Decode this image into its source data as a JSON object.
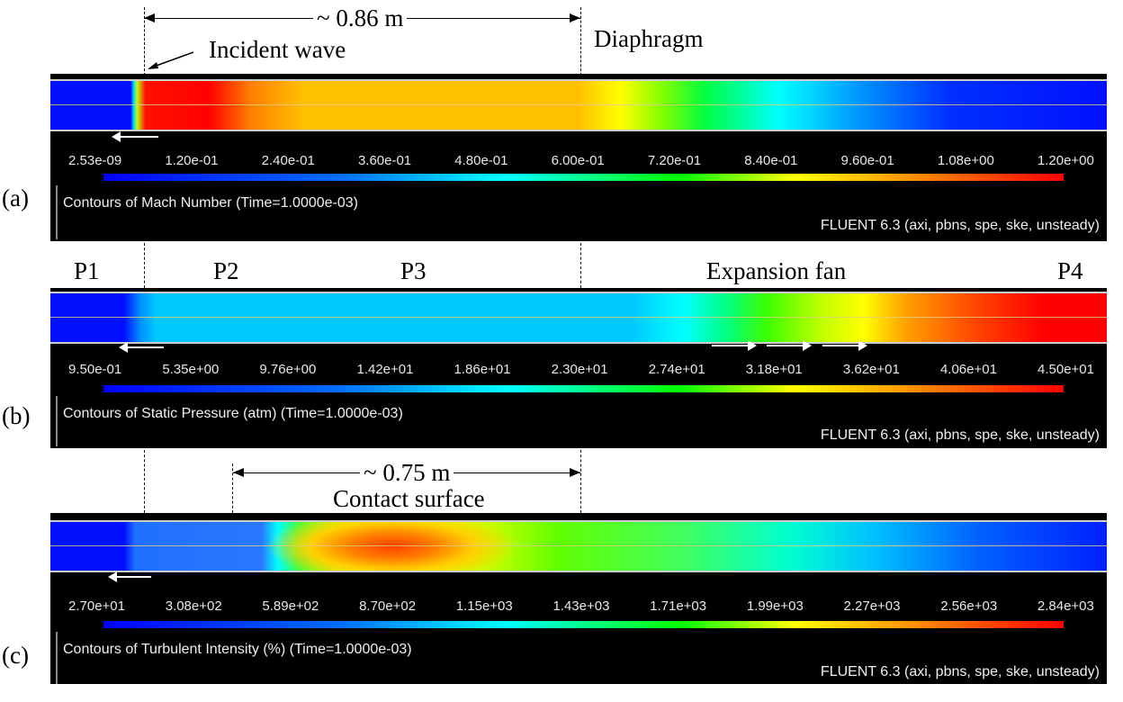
{
  "annotations": {
    "dim_top": "~ 0.86 m",
    "incident_wave": "Incident wave",
    "diaphragm": "Diaphragm",
    "p1": "P1",
    "p2": "P2",
    "p3": "P3",
    "expansion_fan": "Expansion fan",
    "p4": "P4",
    "dim_bottom": "~ 0.75 m",
    "contact_surface": "Contact surface"
  },
  "panels": [
    {
      "label": "(a)",
      "title": "Contours of Mach Number  (Time=1.0000e-03)",
      "footer": "FLUENT 6.3 (axi, pbns, spe, ske, unsteady)",
      "ticks": [
        "2.53e-09",
        "1.20e-01",
        "2.40e-01",
        "3.60e-01",
        "4.80e-01",
        "6.00e-01",
        "7.20e-01",
        "8.40e-01",
        "9.60e-01",
        "1.08e+00",
        "1.20e+00"
      ]
    },
    {
      "label": "(b)",
      "title": "Contours of Static Pressure (atm)  (Time=1.0000e-03)",
      "footer": "FLUENT 6.3 (axi, pbns, spe, ske, unsteady)",
      "ticks": [
        "9.50e-01",
        "5.35e+00",
        "9.76e+00",
        "1.42e+01",
        "1.86e+01",
        "2.30e+01",
        "2.74e+01",
        "3.18e+01",
        "3.62e+01",
        "4.06e+01",
        "4.50e+01"
      ]
    },
    {
      "label": "(c)",
      "title": "Contours of Turbulent Intensity (%)  (Time=1.0000e-03)",
      "footer": "FLUENT 6.3 (axi, pbns, spe, ske, unsteady)",
      "ticks": [
        "2.70e+01",
        "3.08e+02",
        "5.89e+02",
        "8.70e+02",
        "1.15e+03",
        "1.43e+03",
        "1.71e+03",
        "1.99e+03",
        "2.27e+03",
        "2.56e+03",
        "2.84e+03"
      ]
    }
  ]
}
